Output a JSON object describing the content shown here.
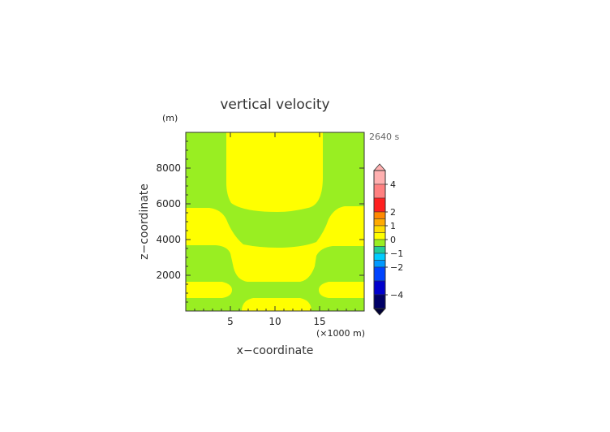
{
  "chart_data": {
    "type": "heatmap",
    "title": "vertical velocity",
    "xlabel": "x−coordinate",
    "ylabel": "z−coordinate",
    "y_unit": "(m)",
    "x_unit": "(×1000 m)",
    "time_label": "2640 s",
    "xlim": [
      0,
      20
    ],
    "ylim": [
      0,
      10000
    ],
    "x_ticks": [
      5,
      10,
      15
    ],
    "x_tick_labels": [
      "5",
      "10",
      "15"
    ],
    "y_ticks": [
      2000,
      4000,
      6000,
      8000
    ],
    "y_tick_labels": [
      "2000",
      "4000",
      "6000",
      "8000"
    ],
    "background_level_color": "#99ee22",
    "positive_region_color": "#ffff00",
    "colorbar": {
      "range": [
        -5,
        5
      ],
      "labels": [
        {
          "value": 4,
          "text": "4"
        },
        {
          "value": 2,
          "text": "2"
        },
        {
          "value": 1,
          "text": "1"
        },
        {
          "value": 0,
          "text": "0"
        },
        {
          "value": -1,
          "text": "−1"
        },
        {
          "value": -2,
          "text": "−2"
        },
        {
          "value": -4,
          "text": "−4"
        }
      ],
      "bands": [
        {
          "from": 4,
          "to": 5,
          "color": "#ffb0b0"
        },
        {
          "from": 3,
          "to": 4,
          "color": "#ff8080"
        },
        {
          "from": 2,
          "to": 3,
          "color": "#ff2020"
        },
        {
          "from": 1.5,
          "to": 2,
          "color": "#ff8800"
        },
        {
          "from": 1,
          "to": 1.5,
          "color": "#ffaa00"
        },
        {
          "from": 0.5,
          "to": 1,
          "color": "#ffdd00"
        },
        {
          "from": 0,
          "to": 0.5,
          "color": "#ffff00"
        },
        {
          "from": -0.5,
          "to": 0,
          "color": "#99ee22"
        },
        {
          "from": -1,
          "to": -0.5,
          "color": "#22cc99"
        },
        {
          "from": -1.5,
          "to": -1,
          "color": "#00ccff"
        },
        {
          "from": -2,
          "to": -1.5,
          "color": "#0099ff"
        },
        {
          "from": -3,
          "to": -2,
          "color": "#0044ff"
        },
        {
          "from": -4,
          "to": -3,
          "color": "#0000cc"
        },
        {
          "from": -5,
          "to": -4,
          "color": "#000066"
        }
      ]
    }
  }
}
